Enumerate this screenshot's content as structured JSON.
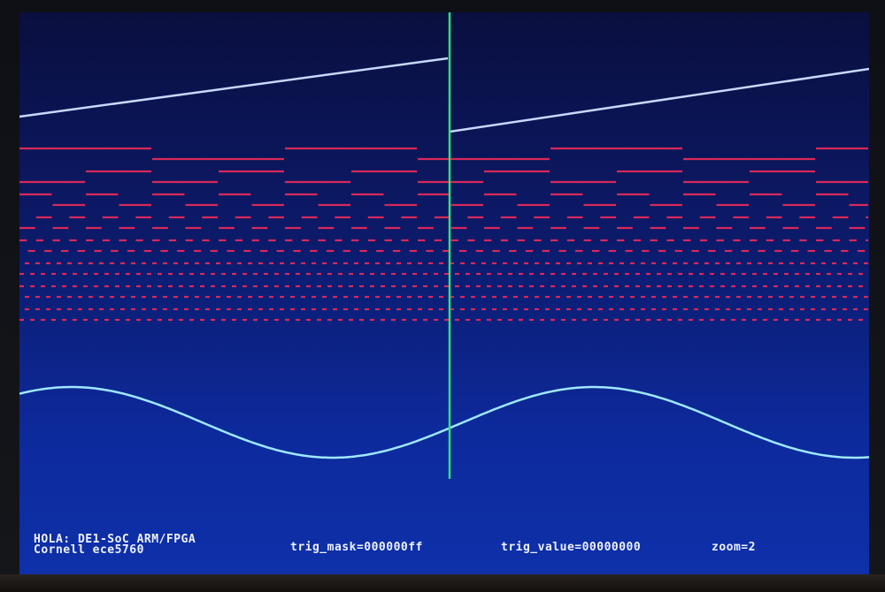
{
  "status": {
    "title_line": "HOLA: DE1-SoC ARM/FPGA",
    "credit_line": "Cornell ece5760",
    "trig_mask": "trig_mask=000000ff",
    "trig_value": "trig_value=00000000",
    "zoom": "zoom=2"
  },
  "colors": {
    "background_top": "#0a0f3e",
    "background_bottom": "#0e30aa",
    "ramp_trace": "#c8d8ff",
    "digital_traces": "#d8285a",
    "sine_trace": "#9ee8ff",
    "trigger_cursor": "#2fe07a",
    "status_text": "#eef2ff"
  },
  "traces": {
    "ramp": {
      "name": "ramp-trace"
    },
    "digital_bits": {
      "count": 8
    },
    "sine": {
      "name": "sine-trace"
    },
    "trigger": {
      "name": "trigger-cursor"
    }
  }
}
